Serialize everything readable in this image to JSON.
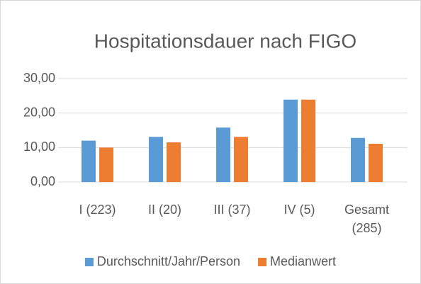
{
  "chart_data": {
    "type": "bar",
    "title": "Hospitationsdauer nach FIGO",
    "categories": [
      "I (223)",
      "II (20)",
      "III (37)",
      "IV (5)",
      "Gesamt (285)"
    ],
    "series": [
      {
        "name": "Durchschnitt/Jahr/Person",
        "color": "#5b9bd5",
        "values": [
          12.0,
          13.1,
          15.8,
          23.9,
          12.8
        ]
      },
      {
        "name": "Medianwert",
        "color": "#ed7d31",
        "values": [
          10.0,
          11.5,
          13.1,
          23.9,
          11.1
        ]
      }
    ],
    "ylim": [
      0,
      30
    ],
    "yticks": [
      {
        "value": 0,
        "label": "0,00"
      },
      {
        "value": 10,
        "label": "10,00"
      },
      {
        "value": 20,
        "label": "20,00"
      },
      {
        "value": 30,
        "label": "30,00"
      }
    ],
    "grid": true,
    "legend": "bottom"
  }
}
